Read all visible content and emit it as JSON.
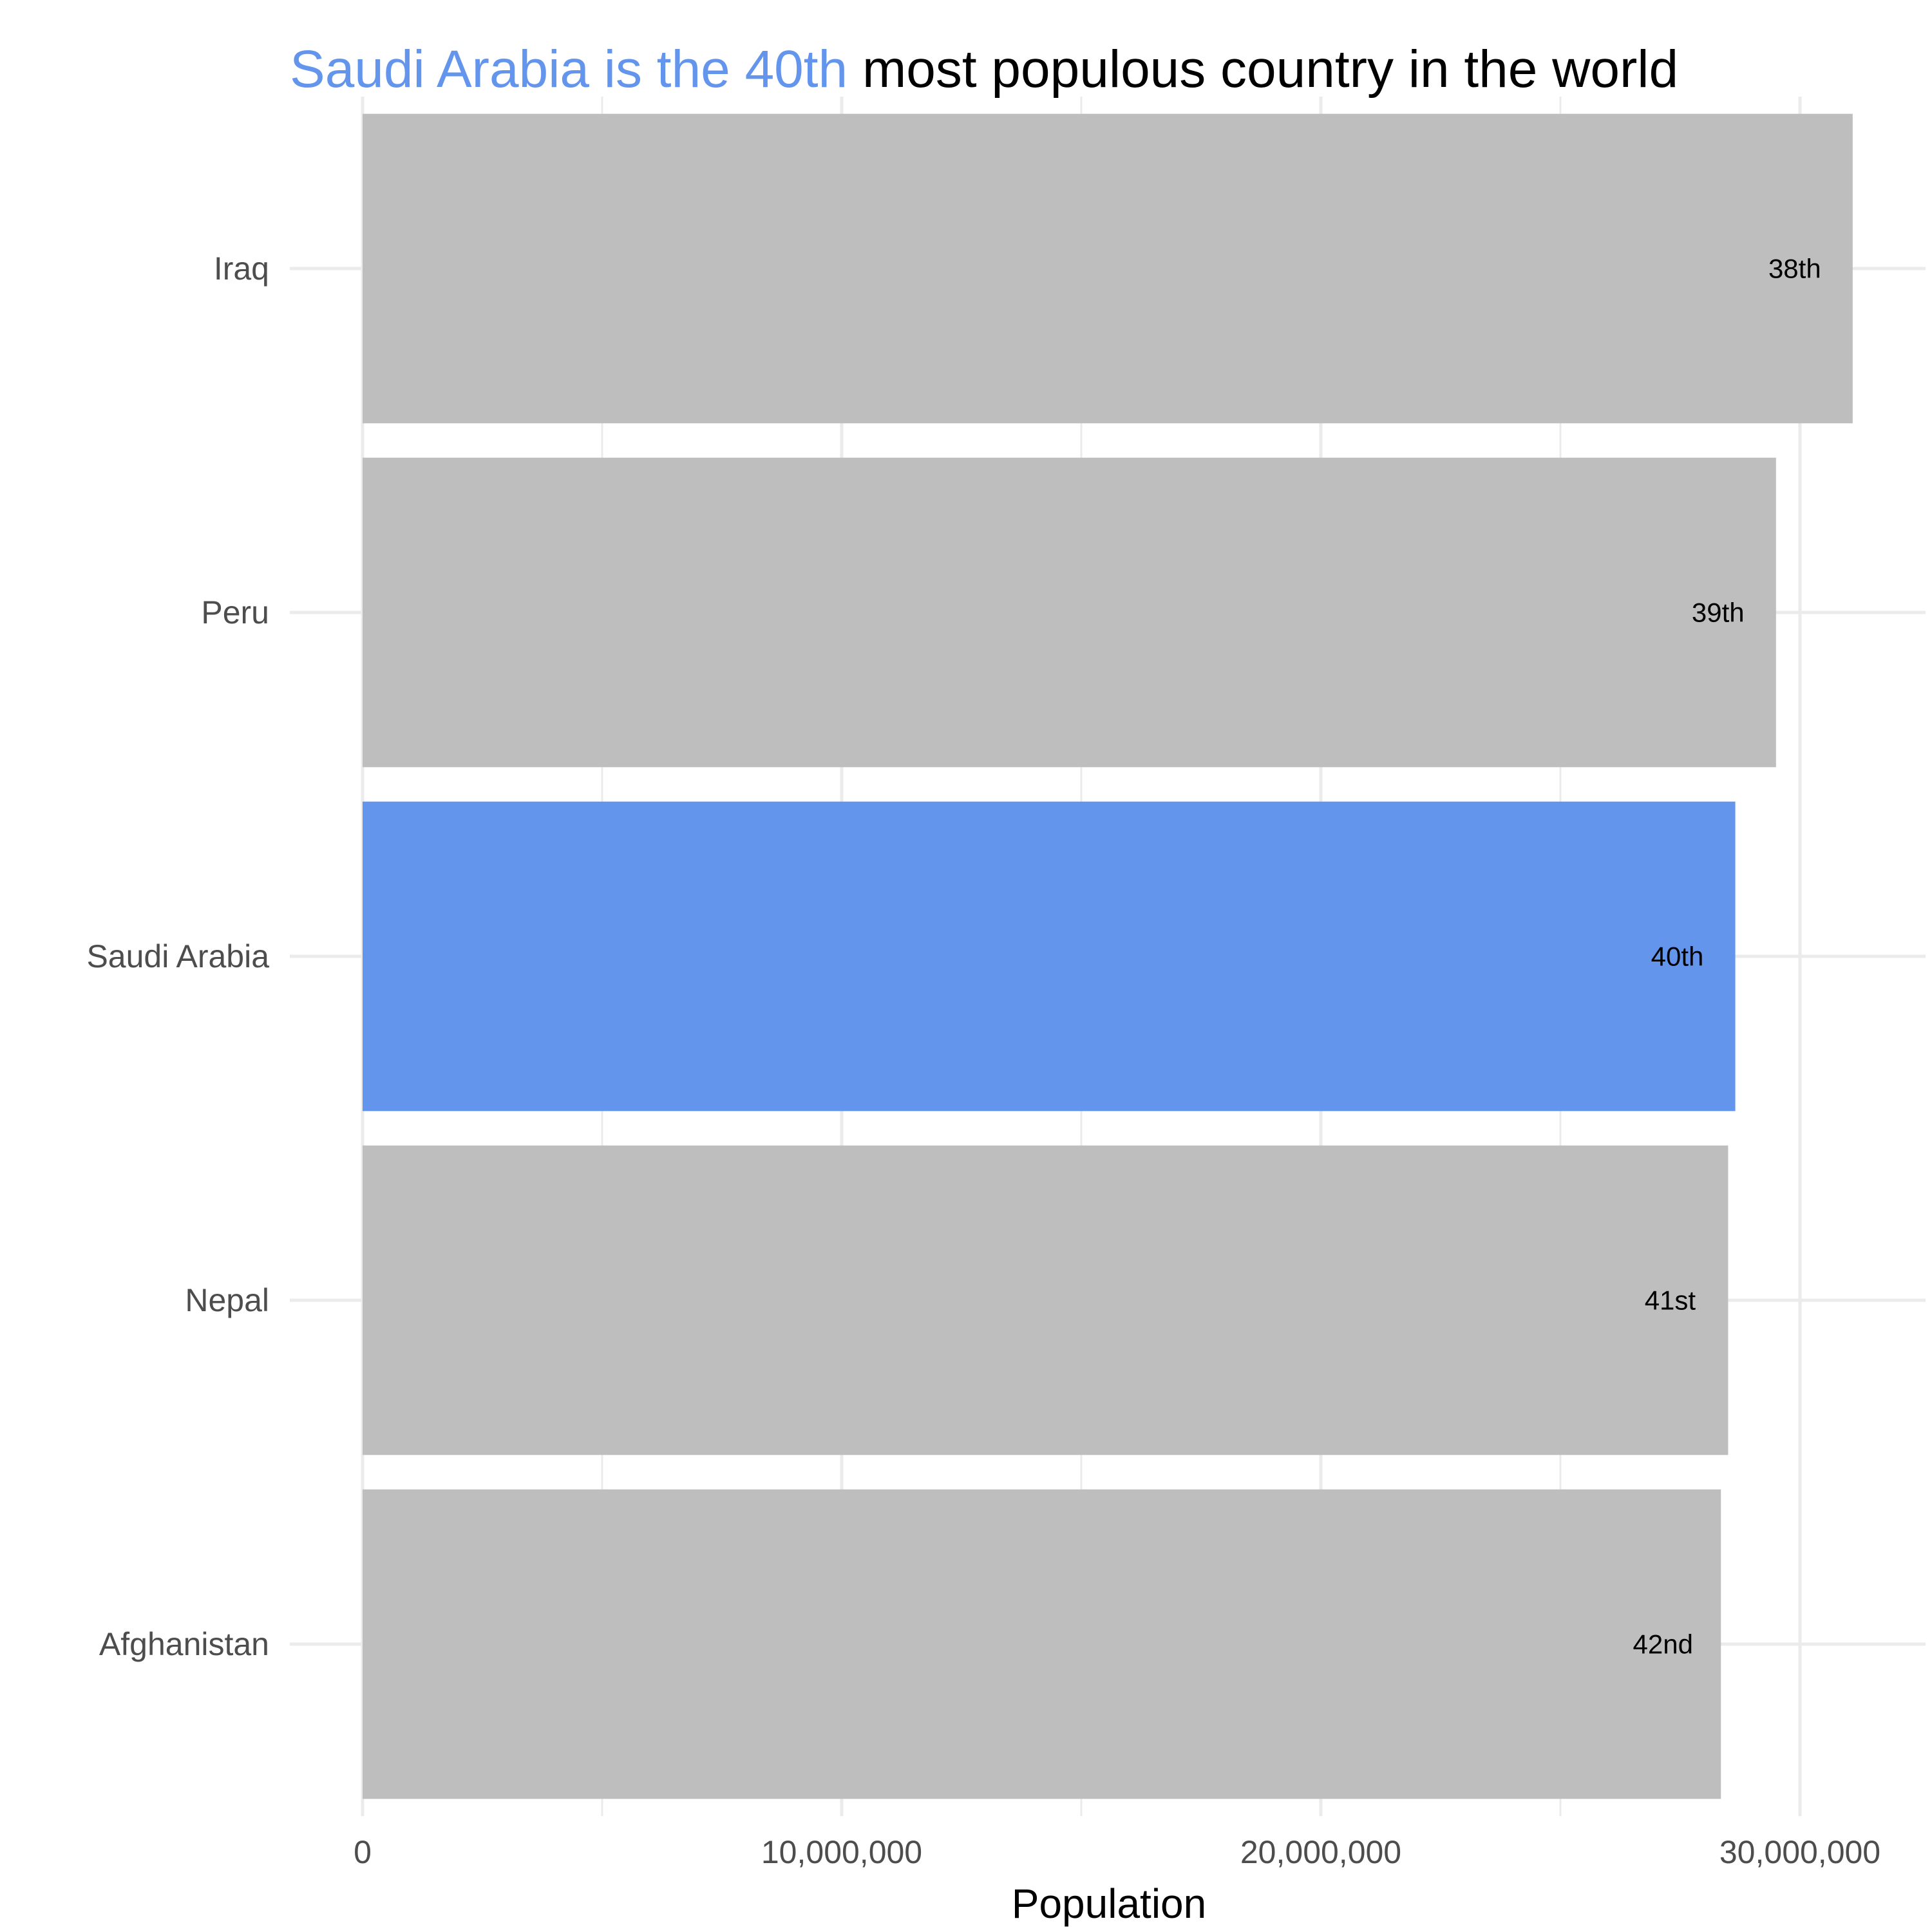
{
  "chart_data": {
    "type": "bar",
    "orientation": "horizontal",
    "title": {
      "highlight": "Saudi Arabia is the 40th",
      "rest": "most populous country in the world"
    },
    "xlabel": "Population",
    "ylabel": "",
    "categories": [
      "Iraq",
      "Peru",
      "Saudi Arabia",
      "Nepal",
      "Afghanistan"
    ],
    "values": [
      31100000,
      29500000,
      28650000,
      28500000,
      28350000
    ],
    "rank_labels": [
      "38th",
      "39th",
      "40th",
      "41st",
      "42nd"
    ],
    "highlight_category": "Saudi Arabia",
    "xlim": [
      0,
      32600000
    ],
    "x_ticks": [
      0,
      10000000,
      20000000,
      30000000
    ],
    "x_tick_labels": [
      "0",
      "10,000,000",
      "20,000,000",
      "30,000,000"
    ],
    "grid": true,
    "legend": "none",
    "colors": {
      "highlight": "#6495ED",
      "default": "#BEBEBE",
      "grid": "#EBEBEB",
      "title_rest": "#000000",
      "tick_text": "#4D4D4D"
    }
  }
}
